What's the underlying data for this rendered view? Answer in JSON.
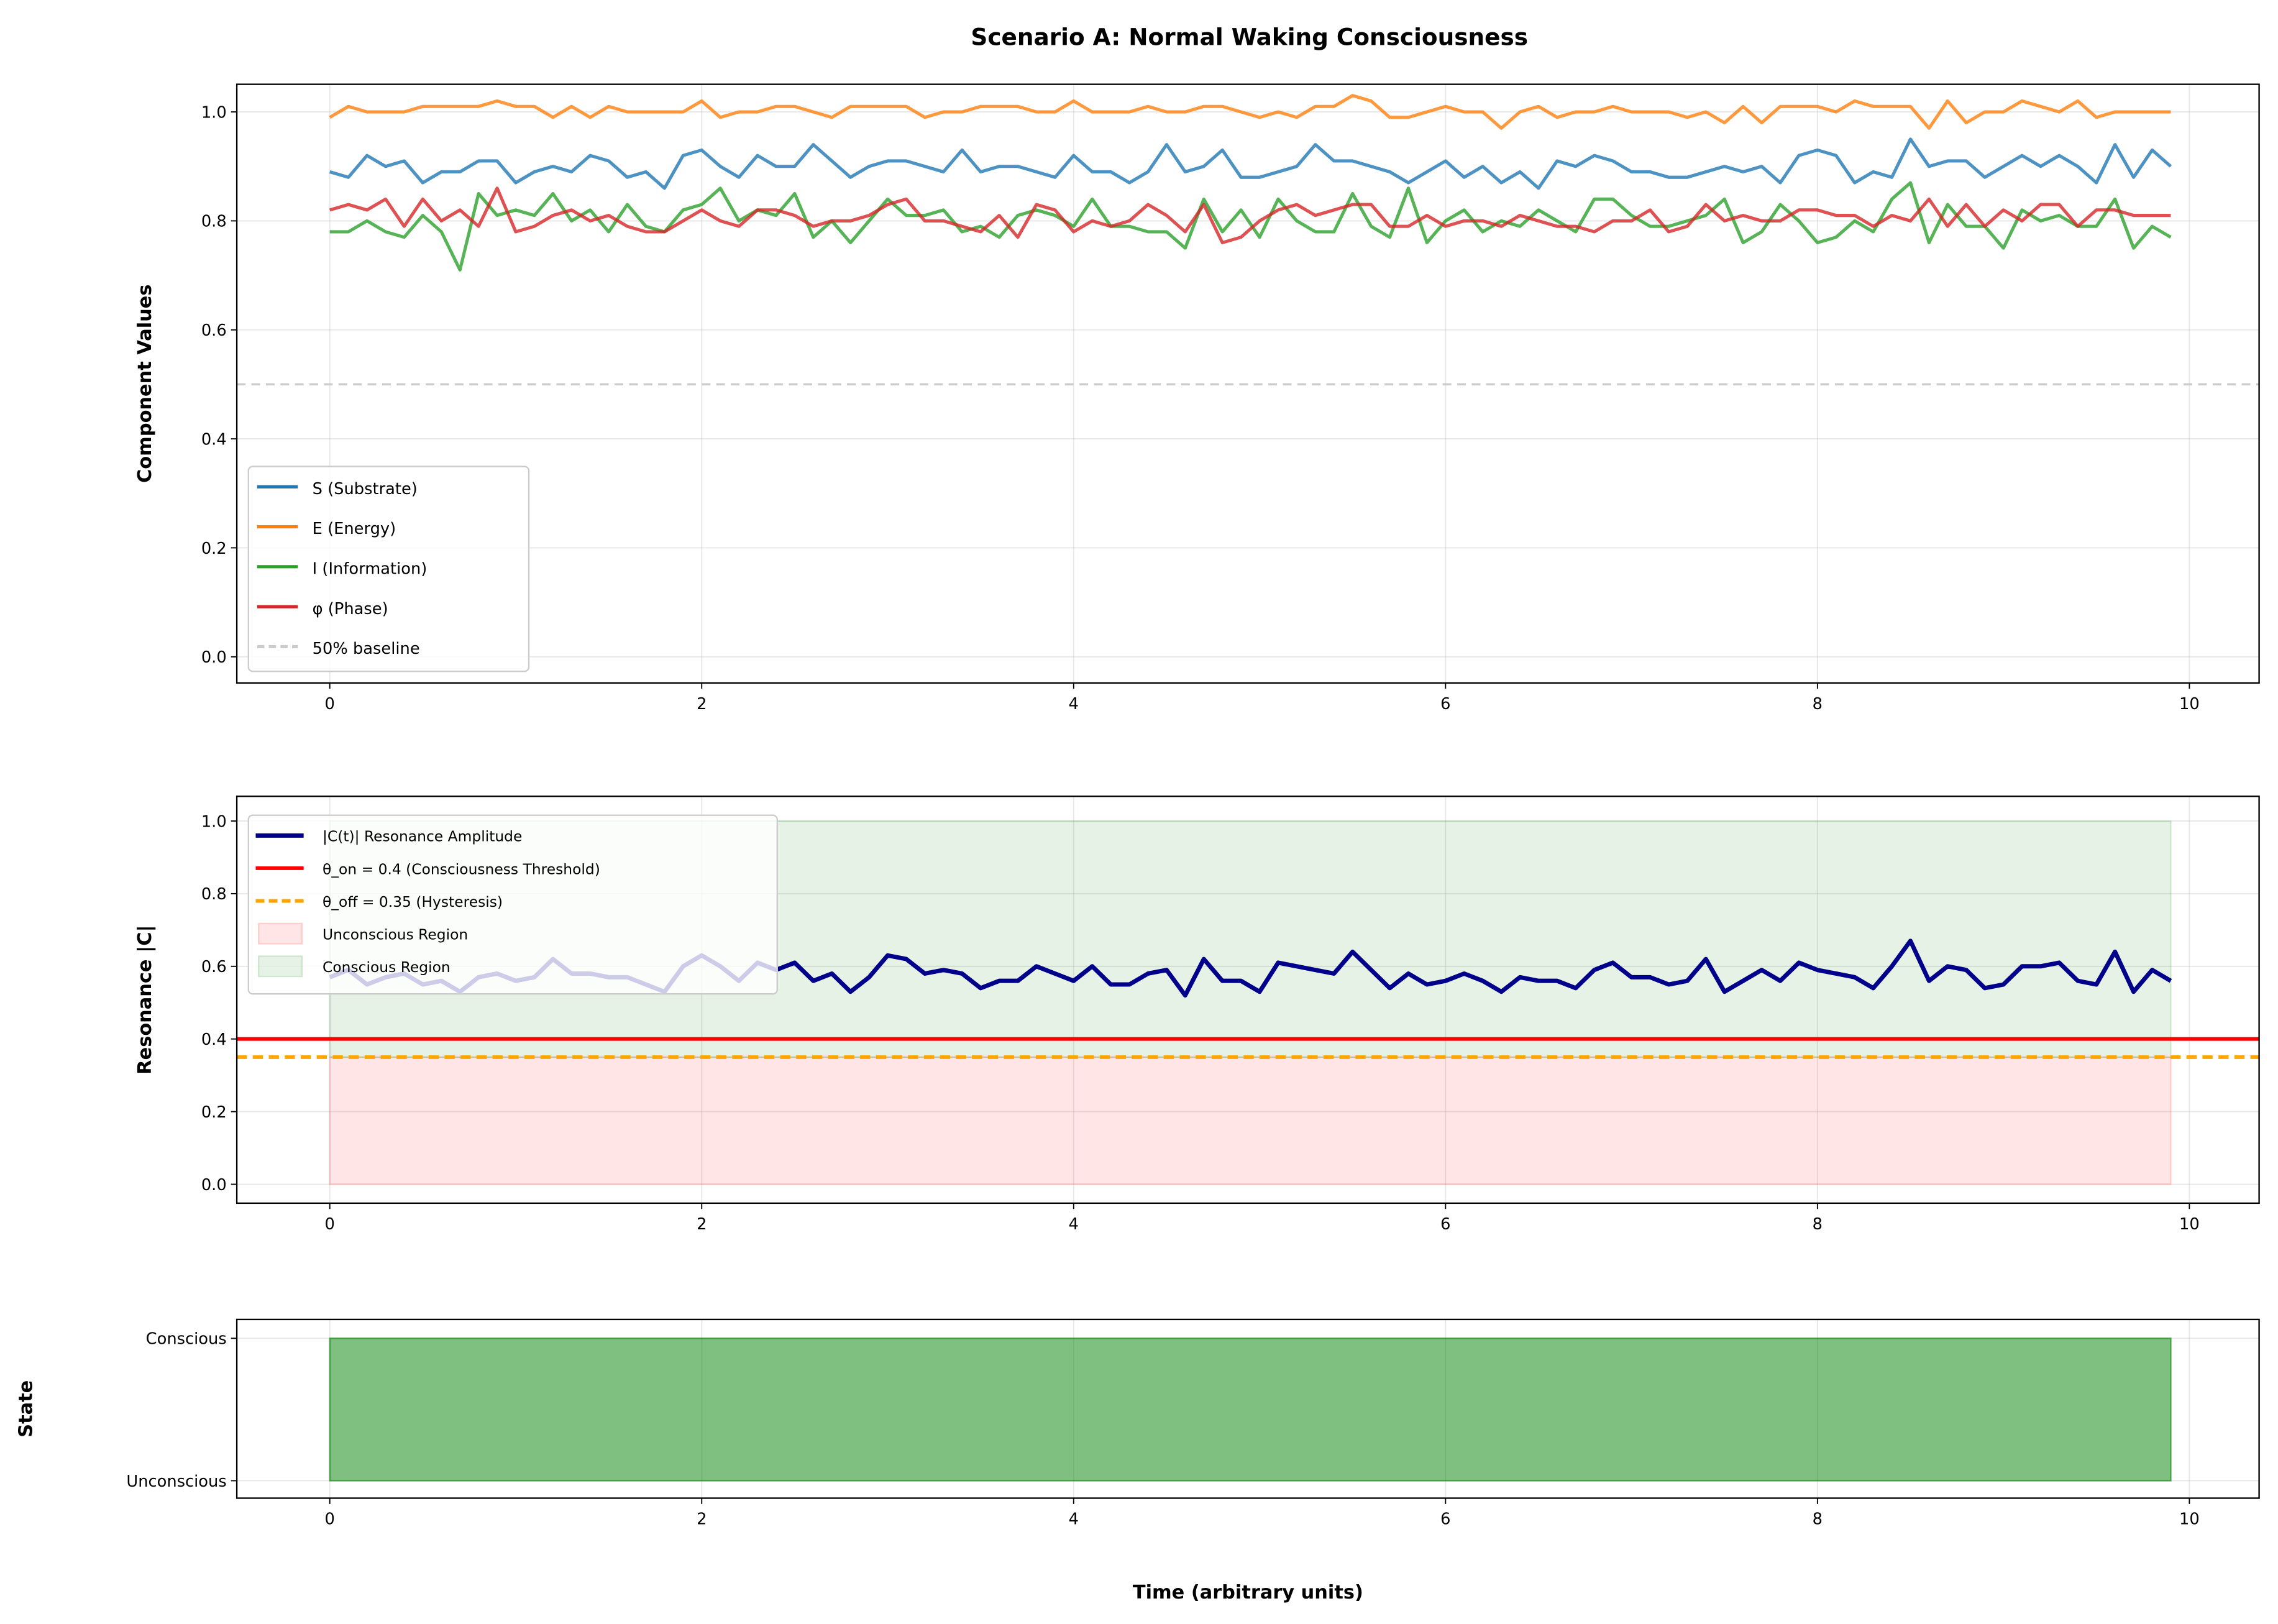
{
  "title": "Scenario A: Normal Waking Consciousness",
  "chart_data": [
    {
      "type": "line",
      "ylabel": "Component Values",
      "xlim": [
        -0.5,
        10.4
      ],
      "ylim": [
        -0.05,
        1.05
      ],
      "xticks": [
        "0",
        "2",
        "4",
        "6",
        "8",
        "10"
      ],
      "yticks": [
        "0.0",
        "0.2",
        "0.4",
        "0.6",
        "0.8",
        "1.0"
      ],
      "grid": true,
      "legend_placement": "lower-left",
      "x_start": 0,
      "x_step": 0.1,
      "series": [
        {
          "name": "S (Substrate)",
          "color": "#1f77b4",
          "values": [
            0.89,
            0.88,
            0.92,
            0.9,
            0.91,
            0.87,
            0.89,
            0.89,
            0.91,
            0.91,
            0.87,
            0.89,
            0.9,
            0.89,
            0.92,
            0.91,
            0.88,
            0.89,
            0.86,
            0.92,
            0.93,
            0.9,
            0.88,
            0.92,
            0.9,
            0.9,
            0.94,
            0.91,
            0.88,
            0.9,
            0.91,
            0.91,
            0.9,
            0.89,
            0.93,
            0.89,
            0.9,
            0.9,
            0.89,
            0.88,
            0.92,
            0.89,
            0.89,
            0.87,
            0.89,
            0.94,
            0.89,
            0.9,
            0.93,
            0.88,
            0.88,
            0.89,
            0.9,
            0.94,
            0.91,
            0.91,
            0.9,
            0.89,
            0.87,
            0.89,
            0.91,
            0.88,
            0.9,
            0.87,
            0.89,
            0.86,
            0.91,
            0.9,
            0.92,
            0.91,
            0.89,
            0.89,
            0.88,
            0.88,
            0.89,
            0.9,
            0.89,
            0.9,
            0.87,
            0.92,
            0.93,
            0.92,
            0.87,
            0.89,
            0.88,
            0.95,
            0.9,
            0.91,
            0.91,
            0.88,
            0.9,
            0.92,
            0.9,
            0.92,
            0.9,
            0.87,
            0.94,
            0.88,
            0.93,
            0.9
          ]
        },
        {
          "name": "E (Energy)",
          "color": "#ff7f0e",
          "values": [
            0.99,
            1.01,
            1.0,
            1.0,
            1.0,
            1.01,
            1.01,
            1.01,
            1.01,
            1.02,
            1.01,
            1.01,
            0.99,
            1.01,
            0.99,
            1.01,
            1.0,
            1.0,
            1.0,
            1.0,
            1.02,
            0.99,
            1.0,
            1.0,
            1.01,
            1.01,
            1.0,
            0.99,
            1.01,
            1.01,
            1.01,
            1.01,
            0.99,
            1.0,
            1.0,
            1.01,
            1.01,
            1.01,
            1.0,
            1.0,
            1.02,
            1.0,
            1.0,
            1.0,
            1.01,
            1.0,
            1.0,
            1.01,
            1.01,
            1.0,
            0.99,
            1.0,
            0.99,
            1.01,
            1.01,
            1.03,
            1.02,
            0.99,
            0.99,
            1.0,
            1.01,
            1.0,
            1.0,
            0.97,
            1.0,
            1.01,
            0.99,
            1.0,
            1.0,
            1.01,
            1.0,
            1.0,
            1.0,
            0.99,
            1.0,
            0.98,
            1.01,
            0.98,
            1.01,
            1.01,
            1.01,
            1.0,
            1.02,
            1.01,
            1.01,
            1.01,
            0.97,
            1.02,
            0.98,
            1.0,
            1.0,
            1.02,
            1.01,
            1.0,
            1.02,
            0.99,
            1.0,
            1.0,
            1.0,
            1.0
          ]
        },
        {
          "name": "I (Information)",
          "color": "#2ca02c",
          "values": [
            0.78,
            0.78,
            0.8,
            0.78,
            0.77,
            0.81,
            0.78,
            0.71,
            0.85,
            0.81,
            0.82,
            0.81,
            0.85,
            0.8,
            0.82,
            0.78,
            0.83,
            0.79,
            0.78,
            0.82,
            0.83,
            0.86,
            0.8,
            0.82,
            0.81,
            0.85,
            0.77,
            0.8,
            0.76,
            0.8,
            0.84,
            0.81,
            0.81,
            0.82,
            0.78,
            0.79,
            0.77,
            0.81,
            0.82,
            0.81,
            0.79,
            0.84,
            0.79,
            0.79,
            0.78,
            0.78,
            0.75,
            0.84,
            0.78,
            0.82,
            0.77,
            0.84,
            0.8,
            0.78,
            0.78,
            0.85,
            0.79,
            0.77,
            0.86,
            0.76,
            0.8,
            0.82,
            0.78,
            0.8,
            0.79,
            0.82,
            0.8,
            0.78,
            0.84,
            0.84,
            0.81,
            0.79,
            0.79,
            0.8,
            0.81,
            0.84,
            0.76,
            0.78,
            0.83,
            0.8,
            0.76,
            0.77,
            0.8,
            0.78,
            0.84,
            0.87,
            0.76,
            0.83,
            0.79,
            0.79,
            0.75,
            0.82,
            0.8,
            0.81,
            0.79,
            0.79,
            0.84,
            0.75,
            0.79,
            0.77
          ]
        },
        {
          "name": "φ (Phase)",
          "color": "#d62728",
          "values": [
            0.82,
            0.83,
            0.82,
            0.84,
            0.79,
            0.84,
            0.8,
            0.82,
            0.79,
            0.86,
            0.78,
            0.79,
            0.81,
            0.82,
            0.8,
            0.81,
            0.79,
            0.78,
            0.78,
            0.8,
            0.82,
            0.8,
            0.79,
            0.82,
            0.82,
            0.81,
            0.79,
            0.8,
            0.8,
            0.81,
            0.83,
            0.84,
            0.8,
            0.8,
            0.79,
            0.78,
            0.81,
            0.77,
            0.83,
            0.82,
            0.78,
            0.8,
            0.79,
            0.8,
            0.83,
            0.81,
            0.78,
            0.83,
            0.76,
            0.77,
            0.8,
            0.82,
            0.83,
            0.81,
            0.82,
            0.83,
            0.83,
            0.79,
            0.79,
            0.81,
            0.79,
            0.8,
            0.8,
            0.79,
            0.81,
            0.8,
            0.79,
            0.79,
            0.78,
            0.8,
            0.8,
            0.82,
            0.78,
            0.79,
            0.83,
            0.8,
            0.81,
            0.8,
            0.8,
            0.82,
            0.82,
            0.81,
            0.81,
            0.79,
            0.81,
            0.8,
            0.84,
            0.79,
            0.83,
            0.79,
            0.82,
            0.8,
            0.83,
            0.83,
            0.79,
            0.82,
            0.82,
            0.81,
            0.81,
            0.81
          ]
        }
      ],
      "baseline": {
        "name": "50% baseline",
        "value": 0.5,
        "color": "#cccccc"
      }
    },
    {
      "type": "line",
      "ylabel": "Resonance |C|",
      "xlim": [
        -0.5,
        10.4
      ],
      "ylim": [
        -0.05,
        1.05
      ],
      "xticks": [
        "0",
        "2",
        "4",
        "6",
        "8",
        "10"
      ],
      "yticks": [
        "0.0",
        "0.2",
        "0.4",
        "0.6",
        "0.8",
        "1.0"
      ],
      "grid": true,
      "legend_placement": "upper-left",
      "x_start": 0,
      "x_step": 0.1,
      "series": [
        {
          "name": "|C(t)| Resonance Amplitude",
          "color": "#00008b",
          "values": [
            0.57,
            0.59,
            0.55,
            0.57,
            0.58,
            0.55,
            0.56,
            0.53,
            0.57,
            0.58,
            0.56,
            0.57,
            0.62,
            0.58,
            0.58,
            0.57,
            0.57,
            0.55,
            0.53,
            0.6,
            0.63,
            0.6,
            0.56,
            0.61,
            0.59,
            0.61,
            0.56,
            0.58,
            0.53,
            0.57,
            0.63,
            0.62,
            0.58,
            0.59,
            0.58,
            0.54,
            0.56,
            0.56,
            0.6,
            0.58,
            0.56,
            0.6,
            0.55,
            0.55,
            0.58,
            0.59,
            0.52,
            0.62,
            0.56,
            0.56,
            0.53,
            0.61,
            0.6,
            0.59,
            0.58,
            0.64,
            0.59,
            0.54,
            0.58,
            0.55,
            0.56,
            0.58,
            0.56,
            0.53,
            0.57,
            0.56,
            0.56,
            0.54,
            0.59,
            0.61,
            0.57,
            0.57,
            0.55,
            0.56,
            0.62,
            0.53,
            0.56,
            0.59,
            0.56,
            0.61,
            0.59,
            0.58,
            0.57,
            0.54,
            0.6,
            0.67,
            0.56,
            0.6,
            0.59,
            0.54,
            0.55,
            0.6,
            0.6,
            0.61,
            0.56,
            0.55,
            0.64,
            0.53,
            0.59,
            0.56
          ]
        }
      ],
      "thresholds": [
        {
          "name": "θ_on = 0.4 (Consciousness Threshold)",
          "value": 0.4,
          "color": "#ff0000",
          "style": "solid"
        },
        {
          "name": "θ_off = 0.35 (Hysteresis)",
          "value": 0.35,
          "color": "#ffa500",
          "style": "dashed"
        }
      ],
      "regions": [
        {
          "name": "Unconscious Region",
          "from": 0,
          "to": 0.35,
          "color": "#ff0000",
          "alpha": 0.1
        },
        {
          "name": "Conscious Region",
          "from": 0.35,
          "to": 1.0,
          "color": "#008000",
          "alpha": 0.1
        }
      ],
      "region_x": [
        0,
        9.9
      ]
    },
    {
      "type": "area",
      "ylabel": "State",
      "xlabel": "Time (arbitrary units)",
      "xlim": [
        -0.5,
        10.4
      ],
      "xticks": [
        "0",
        "2",
        "4",
        "6",
        "8",
        "10"
      ],
      "yticks": [
        "Unconscious",
        "Conscious"
      ],
      "grid": true,
      "state_x": [
        0,
        9.9
      ],
      "state_value": 1,
      "color": "#008000"
    }
  ]
}
